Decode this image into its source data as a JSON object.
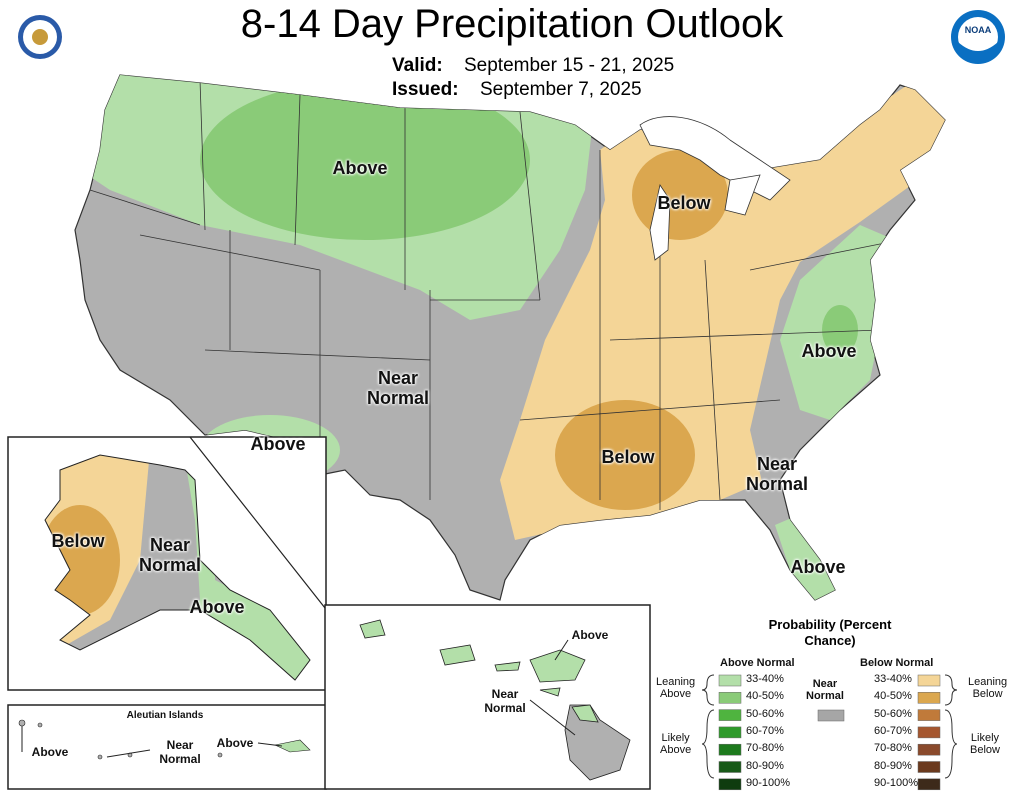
{
  "header": {
    "title": "8-14 Day Precipitation Outlook",
    "valid_label": "Valid:",
    "valid_dates": "September 15 - 21, 2025",
    "issued_label": "Issued:",
    "issued_date": "September 7, 2025"
  },
  "logos": {
    "noaa": "NOAA"
  },
  "map_labels": {
    "conus": [
      "Above",
      "Below",
      "Near Normal",
      "Above",
      "Below",
      "Near Normal",
      "Above",
      "Above"
    ],
    "alaska": [
      "Below",
      "Near Normal",
      "Above"
    ],
    "aleutian_title": "Aleutian Islands",
    "aleutian": [
      "Above",
      "Near Normal",
      "Above"
    ],
    "hawaii": [
      "Above",
      "Near Normal"
    ]
  },
  "legend": {
    "title": "Probability (Percent Chance)",
    "above_header": "Above Normal",
    "below_header": "Below Normal",
    "near_label": "Near Normal",
    "near_color": "#a6a6a6",
    "above_groups": [
      "Leaning Above",
      "Likely Above"
    ],
    "below_groups": [
      "Leaning Below",
      "Likely Below"
    ],
    "above_bins": [
      {
        "range": "33-40%",
        "color": "#b3dfa9"
      },
      {
        "range": "40-50%",
        "color": "#8acb78"
      },
      {
        "range": "50-60%",
        "color": "#4fb43f"
      },
      {
        "range": "60-70%",
        "color": "#2e9a2a"
      },
      {
        "range": "70-80%",
        "color": "#1d7a1d"
      },
      {
        "range": "80-90%",
        "color": "#185a18"
      },
      {
        "range": "90-100%",
        "color": "#0f3c0f"
      }
    ],
    "below_bins": [
      {
        "range": "33-40%",
        "color": "#f4d597"
      },
      {
        "range": "40-50%",
        "color": "#dba74f"
      },
      {
        "range": "50-60%",
        "color": "#c07a3a"
      },
      {
        "range": "60-70%",
        "color": "#a5562f"
      },
      {
        "range": "70-80%",
        "color": "#8a4a2c"
      },
      {
        "range": "80-90%",
        "color": "#6b3a1e"
      },
      {
        "range": "90-100%",
        "color": "#3d2a1a"
      }
    ]
  }
}
